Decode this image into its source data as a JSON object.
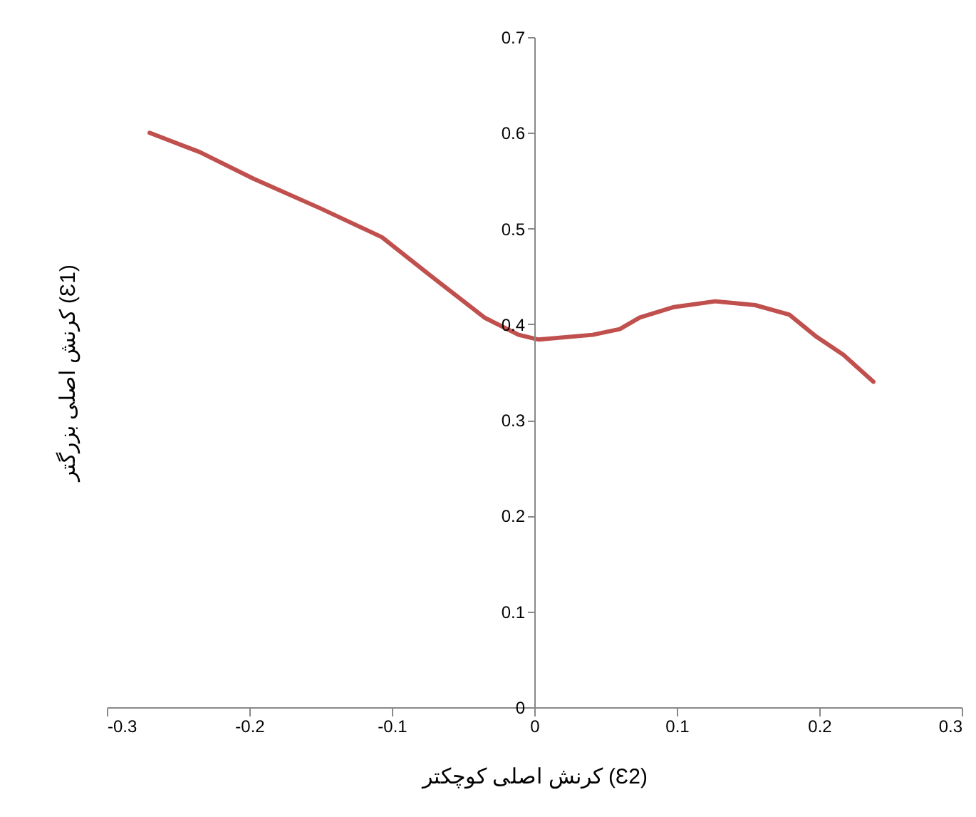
{
  "chart_data": {
    "type": "line",
    "xlabel": "کرنش اصلی کوچکتر (Ɛ2)",
    "ylabel": "کرنش اصلی بزرگتر (Ɛ1)",
    "x": [
      -0.27,
      -0.235,
      -0.197,
      -0.15,
      -0.107,
      -0.073,
      -0.035,
      -0.011,
      0.003,
      0.041,
      0.06,
      0.074,
      0.098,
      0.127,
      0.155,
      0.179,
      0.198,
      0.217,
      0.238
    ],
    "series": [
      {
        "color": "#c0504d",
        "values": [
          0.6,
          0.58,
          0.552,
          0.521,
          0.491,
          0.451,
          0.407,
          0.389,
          0.384,
          0.389,
          0.395,
          0.407,
          0.418,
          0.424,
          0.42,
          0.41,
          0.387,
          0.368,
          0.34
        ]
      }
    ],
    "xlim": [
      -0.3,
      0.3
    ],
    "ylim": [
      0,
      0.7
    ],
    "xticks": [
      -0.3,
      -0.2,
      -0.1,
      0,
      0.1,
      0.2,
      0.3
    ],
    "yticks": [
      0,
      0.1,
      0.2,
      0.3,
      0.4,
      0.5,
      0.6,
      0.7
    ],
    "grid": false,
    "marker": "none",
    "line_style": "solid"
  }
}
